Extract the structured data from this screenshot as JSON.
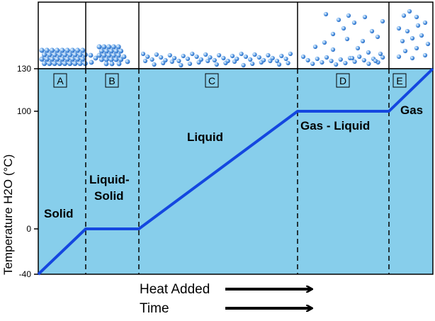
{
  "chart_data": {
    "type": "line",
    "ylabel": "Temperature H2O (°C)",
    "yticks": [
      "130",
      "100",
      "0",
      "-40"
    ],
    "ytick_values": [
      130,
      100,
      0,
      -40
    ],
    "ylim": [
      -40,
      130
    ],
    "segments": [
      "A",
      "B",
      "C",
      "D",
      "E"
    ],
    "series": [
      {
        "x": [
          0,
          1,
          2,
          5,
          7,
          8
        ],
        "y": [
          -40,
          0,
          0,
          100,
          100,
          130
        ]
      }
    ],
    "phase_labels": {
      "solid": "Solid",
      "liquid_solid_1": "Liquid-",
      "liquid_solid_2": "Solid",
      "liquid": "Liquid",
      "gas_liquid": "Gas - Liquid",
      "gas": "Gas"
    },
    "bottom_labels": {
      "heat": "Heat Added",
      "time": "Time"
    },
    "colors": {
      "plot_fill": "#87CEEB",
      "line": "#1447e0",
      "molecule": "#2e7fd6"
    }
  }
}
